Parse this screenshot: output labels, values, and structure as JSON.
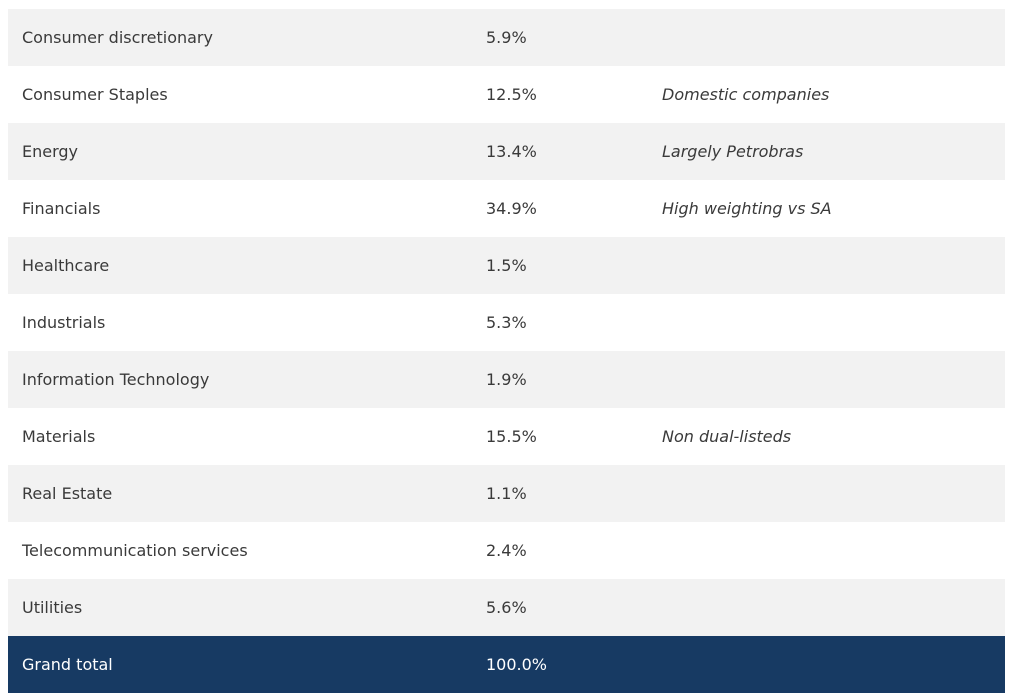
{
  "table": {
    "rows": [
      {
        "sector": "Consumer discretionary",
        "weight": "5.9%",
        "note": ""
      },
      {
        "sector": "Consumer Staples",
        "weight": "12.5%",
        "note": "Domestic companies"
      },
      {
        "sector": "Energy",
        "weight": "13.4%",
        "note": "Largely Petrobras"
      },
      {
        "sector": "Financials",
        "weight": "34.9%",
        "note": "High weighting vs SA"
      },
      {
        "sector": "Healthcare",
        "weight": "1.5%",
        "note": ""
      },
      {
        "sector": "Industrials",
        "weight": "5.3%",
        "note": ""
      },
      {
        "sector": "Information Technology",
        "weight": "1.9%",
        "note": ""
      },
      {
        "sector": "Materials",
        "weight": "15.5%",
        "note": "Non dual-listeds"
      },
      {
        "sector": "Real Estate",
        "weight": "1.1%",
        "note": ""
      },
      {
        "sector": "Telecommunication services",
        "weight": "2.4%",
        "note": ""
      },
      {
        "sector": "Utilities",
        "weight": "5.6%",
        "note": ""
      }
    ],
    "total": {
      "label": "Grand total",
      "weight": "100.0%"
    }
  },
  "colors": {
    "row_alt": "#f2f2f2",
    "row_plain": "#ffffff",
    "total_bg": "#173a63",
    "text": "#3a3a3a",
    "total_text": "#ffffff"
  }
}
